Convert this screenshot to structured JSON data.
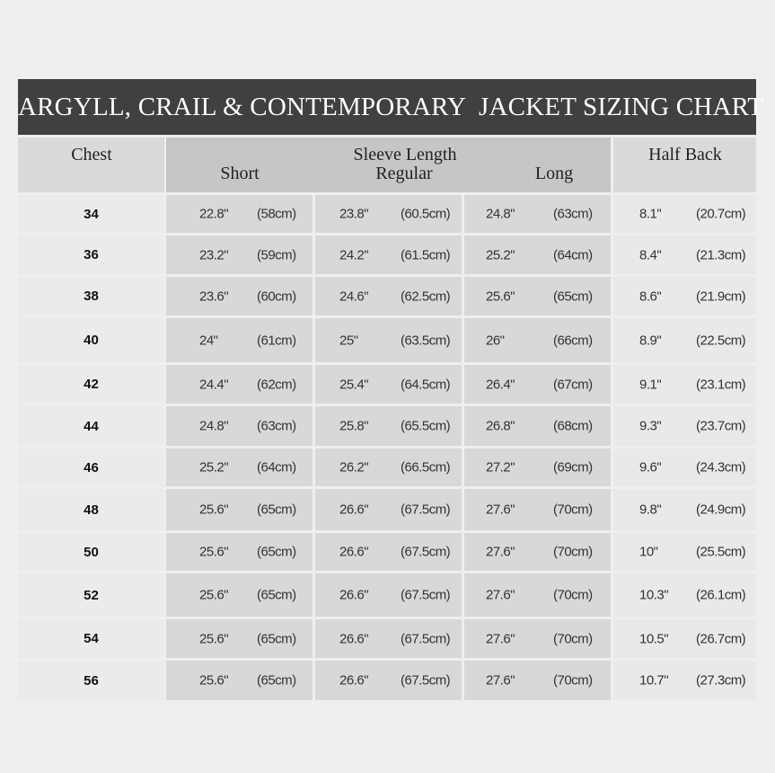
{
  "title": "ARGYLL, CRAIL & CONTEMPORARY  JACKET SIZING CHART",
  "headers": {
    "chest": "Chest",
    "sleeve": "Sleeve Length",
    "short": "Short",
    "regular": "Regular",
    "long": "Long",
    "half_back": "Half Back"
  },
  "colors": {
    "title_bg": "#404040",
    "sleeve_bg": "#d8d8d8",
    "header_sleeve_bg": "#c6c6c6"
  },
  "rows": [
    {
      "chest": "34",
      "short": [
        "22.8\"",
        "(58cm)"
      ],
      "regular": [
        "23.8\"",
        "(60.5cm)"
      ],
      "long": [
        "24.8\"",
        "(63cm)"
      ],
      "half_back": [
        "8.1\"",
        "(20.7cm)"
      ]
    },
    {
      "chest": "36",
      "short": [
        "23.2\"",
        "(59cm)"
      ],
      "regular": [
        "24.2\"",
        "(61.5cm)"
      ],
      "long": [
        "25.2\"",
        "(64cm)"
      ],
      "half_back": [
        "8.4\"",
        "(21.3cm)"
      ]
    },
    {
      "chest": "38",
      "short": [
        "23.6\"",
        "(60cm)"
      ],
      "regular": [
        "24.6\"",
        "(62.5cm)"
      ],
      "long": [
        "25.6\"",
        "(65cm)"
      ],
      "half_back": [
        "8.6\"",
        "(21.9cm)"
      ]
    },
    {
      "chest": "40",
      "short": [
        "24\"",
        "(61cm)"
      ],
      "regular": [
        "25\"",
        "(63.5cm)"
      ],
      "long": [
        "26\"",
        "(66cm)"
      ],
      "half_back": [
        "8.9\"",
        "(22.5cm)"
      ]
    },
    {
      "chest": "42",
      "short": [
        "24.4\"",
        "(62cm)"
      ],
      "regular": [
        "25.4\"",
        "(64.5cm)"
      ],
      "long": [
        "26.4\"",
        "(67cm)"
      ],
      "half_back": [
        "9.1\"",
        "(23.1cm)"
      ]
    },
    {
      "chest": "44",
      "short": [
        "24.8\"",
        "(63cm)"
      ],
      "regular": [
        "25.8\"",
        "(65.5cm)"
      ],
      "long": [
        "26.8\"",
        "(68cm)"
      ],
      "half_back": [
        "9.3\"",
        "(23.7cm)"
      ]
    },
    {
      "chest": "46",
      "short": [
        "25.2\"",
        "(64cm)"
      ],
      "regular": [
        "26.2\"",
        "(66.5cm)"
      ],
      "long": [
        "27.2\"",
        "(69cm)"
      ],
      "half_back": [
        "9.6\"",
        "(24.3cm)"
      ]
    },
    {
      "chest": "48",
      "short": [
        "25.6\"",
        "(65cm)"
      ],
      "regular": [
        "26.6\"",
        "(67.5cm)"
      ],
      "long": [
        "27.6\"",
        "(70cm)"
      ],
      "half_back": [
        "9.8\"",
        "(24.9cm)"
      ]
    },
    {
      "chest": "50",
      "short": [
        "25.6\"",
        "(65cm)"
      ],
      "regular": [
        "26.6\"",
        "(67.5cm)"
      ],
      "long": [
        "27.6\"",
        "(70cm)"
      ],
      "half_back": [
        "10\"",
        "(25.5cm)"
      ]
    },
    {
      "chest": "52",
      "short": [
        "25.6\"",
        "(65cm)"
      ],
      "regular": [
        "26.6\"",
        "(67.5cm)"
      ],
      "long": [
        "27.6\"",
        "(70cm)"
      ],
      "half_back": [
        "10.3\"",
        "(26.1cm)"
      ]
    },
    {
      "chest": "54",
      "short": [
        "25.6\"",
        "(65cm)"
      ],
      "regular": [
        "26.6\"",
        "(67.5cm)"
      ],
      "long": [
        "27.6\"",
        "(70cm)"
      ],
      "half_back": [
        "10.5\"",
        "(26.7cm)"
      ]
    },
    {
      "chest": "56",
      "short": [
        "25.6\"",
        "(65cm)"
      ],
      "regular": [
        "26.6\"",
        "(67.5cm)"
      ],
      "long": [
        "27.6\"",
        "(70cm)"
      ],
      "half_back": [
        "10.7\"",
        "(27.3cm)"
      ]
    }
  ]
}
